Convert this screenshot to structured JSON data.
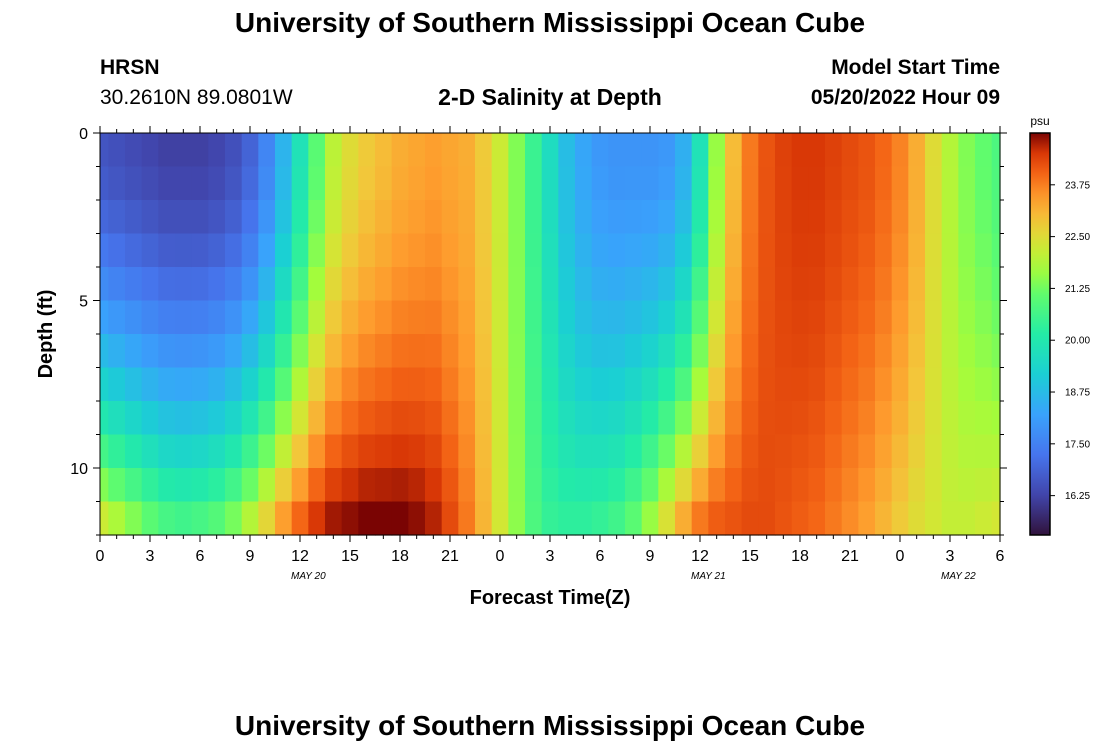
{
  "header": {
    "title": "University of Southern Mississippi Ocean Cube",
    "station": "HRSN",
    "coords": "30.2610N  89.0801W",
    "plot_title": "2-D Salinity at Depth",
    "model_label": "Model Start Time",
    "model_time": "05/20/2022 Hour 09"
  },
  "footer": {
    "title": "University of Southern Mississippi Ocean Cube"
  },
  "chart_data": {
    "type": "heatmap",
    "title": "2-D Salinity at Depth",
    "xlabel": "Forecast Time(Z)",
    "ylabel": "Depth (ft)",
    "x_start_hour": 0,
    "x_end_hour": 54,
    "x_step_hours": 1,
    "x_ticks": [
      {
        "hour": 0,
        "label": "0"
      },
      {
        "hour": 3,
        "label": "3"
      },
      {
        "hour": 6,
        "label": "6"
      },
      {
        "hour": 9,
        "label": "9"
      },
      {
        "hour": 12,
        "label": "12"
      },
      {
        "hour": 15,
        "label": "15"
      },
      {
        "hour": 18,
        "label": "18"
      },
      {
        "hour": 21,
        "label": "21"
      },
      {
        "hour": 24,
        "label": "0"
      },
      {
        "hour": 27,
        "label": "3"
      },
      {
        "hour": 30,
        "label": "6"
      },
      {
        "hour": 33,
        "label": "9"
      },
      {
        "hour": 36,
        "label": "12"
      },
      {
        "hour": 39,
        "label": "15"
      },
      {
        "hour": 42,
        "label": "18"
      },
      {
        "hour": 45,
        "label": "21"
      },
      {
        "hour": 48,
        "label": "0"
      },
      {
        "hour": 51,
        "label": "3"
      },
      {
        "hour": 54,
        "label": "6"
      }
    ],
    "date_labels": [
      {
        "hour": 12.5,
        "label": "MAY 20"
      },
      {
        "hour": 36.5,
        "label": "MAY 21"
      },
      {
        "hour": 51.5,
        "label": "MAY 22"
      }
    ],
    "y_range": [
      0,
      12
    ],
    "y_ticks": [
      {
        "value": 0,
        "label": "0"
      },
      {
        "value": 5,
        "label": "5"
      },
      {
        "value": 10,
        "label": "10"
      }
    ],
    "depth_layers": [
      0.5,
      1.5,
      2.5,
      3.5,
      4.5,
      5.5,
      6.5,
      7.5,
      8.5,
      9.5,
      10.5,
      11.5
    ],
    "colorbar": {
      "unit": "psu",
      "vmin": 15.3,
      "vmax": 25.0,
      "ticks": [
        16.25,
        17.5,
        18.75,
        20.0,
        21.25,
        22.5,
        23.75
      ],
      "tick_labels": [
        "16.25",
        "17.50",
        "18.75",
        "20.00",
        "21.25",
        "22.50",
        "23.75"
      ]
    },
    "surface_salinity_psu": [
      16.6,
      16.5,
      16.4,
      16.3,
      16.2,
      16.2,
      16.2,
      16.3,
      16.5,
      16.9,
      17.6,
      18.6,
      19.8,
      21.0,
      22.0,
      22.5,
      22.8,
      23.0,
      23.2,
      23.3,
      23.4,
      23.3,
      23.2,
      22.8,
      22.2,
      21.4,
      20.5,
      19.6,
      18.8,
      18.3,
      18.0,
      17.9,
      17.9,
      17.9,
      18.0,
      18.5,
      19.8,
      21.6,
      23.0,
      23.8,
      24.2,
      24.4,
      24.5,
      24.5,
      24.4,
      24.3,
      24.2,
      24.0,
      23.7,
      23.2,
      22.5,
      21.9,
      21.4,
      21.1,
      20.8
    ],
    "bottom_salinity_psu": [
      22.2,
      21.8,
      21.4,
      21.0,
      20.7,
      20.6,
      20.7,
      20.9,
      21.3,
      21.9,
      22.6,
      23.4,
      24.0,
      24.5,
      24.8,
      24.9,
      25.0,
      25.0,
      25.0,
      24.9,
      24.7,
      24.3,
      23.8,
      23.1,
      22.3,
      21.5,
      20.8,
      20.4,
      20.3,
      20.3,
      20.4,
      20.6,
      21.0,
      21.6,
      22.4,
      23.2,
      23.8,
      24.1,
      24.2,
      24.3,
      24.3,
      24.2,
      24.1,
      24.0,
      23.8,
      23.6,
      23.4,
      23.1,
      22.8,
      22.5,
      22.3,
      22.1,
      22.1,
      22.2,
      22.3
    ]
  }
}
